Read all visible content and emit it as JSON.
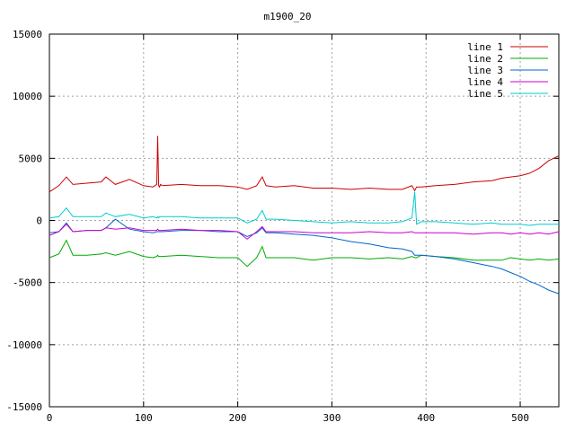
{
  "chart_data": {
    "type": "line",
    "title": "m1900_20",
    "xlim": [
      0,
      541
    ],
    "ylim": [
      -15000,
      15000
    ],
    "x_ticks": [
      0,
      100,
      200,
      300,
      400,
      500
    ],
    "y_ticks": [
      -15000,
      -10000,
      -5000,
      0,
      5000,
      10000,
      15000
    ],
    "grid": true,
    "legend": "top-right",
    "x_sample": [
      0,
      10,
      18,
      25,
      40,
      55,
      60,
      70,
      85,
      100,
      110,
      114,
      115,
      116,
      117,
      118,
      120,
      140,
      160,
      180,
      200,
      210,
      220,
      226,
      230,
      240,
      260,
      280,
      300,
      320,
      340,
      360,
      375,
      385,
      388,
      390,
      395,
      410,
      430,
      450,
      470,
      480,
      490,
      500,
      510,
      520,
      530,
      541
    ],
    "series": [
      {
        "name": "line 1",
        "color": "#cc0000",
        "values": [
          2300,
          2800,
          3500,
          2900,
          3000,
          3100,
          3500,
          2900,
          3300,
          2800,
          2700,
          2900,
          6800,
          2800,
          2700,
          2900,
          2800,
          2900,
          2800,
          2800,
          2700,
          2500,
          2800,
          3500,
          2800,
          2700,
          2800,
          2600,
          2600,
          2500,
          2600,
          2500,
          2500,
          2800,
          2400,
          2700,
          2700,
          2800,
          2900,
          3100,
          3200,
          3400,
          3500,
          3600,
          3800,
          4200,
          4800,
          5200
        ]
      },
      {
        "name": "line 2",
        "color": "#00aa00",
        "values": [
          -3000,
          -2700,
          -1600,
          -2800,
          -2800,
          -2700,
          -2600,
          -2800,
          -2500,
          -2900,
          -3000,
          -2900,
          -2800,
          -2900,
          -2900,
          -2900,
          -2900,
          -2800,
          -2900,
          -3000,
          -3000,
          -3700,
          -3000,
          -2100,
          -3000,
          -3000,
          -3000,
          -3200,
          -3000,
          -3000,
          -3100,
          -3000,
          -3100,
          -2900,
          -3000,
          -3000,
          -2800,
          -2900,
          -3000,
          -3200,
          -3200,
          -3200,
          -3000,
          -3100,
          -3200,
          -3100,
          -3200,
          -3100
        ]
      },
      {
        "name": "line 3",
        "color": "#0066cc",
        "values": [
          -1000,
          -900,
          -200,
          -900,
          -800,
          -800,
          -600,
          100,
          -700,
          -900,
          -1000,
          -900,
          -900,
          -900,
          -900,
          -900,
          -900,
          -800,
          -800,
          -900,
          -900,
          -1300,
          -1000,
          -600,
          -1000,
          -1000,
          -1100,
          -1200,
          -1400,
          -1700,
          -1900,
          -2200,
          -2300,
          -2500,
          -2800,
          -2800,
          -2800,
          -2900,
          -3100,
          -3400,
          -3700,
          -3900,
          -4200,
          -4500,
          -4900,
          -5200,
          -5600,
          -5900
        ]
      },
      {
        "name": "line 4",
        "color": "#cc00cc",
        "values": [
          -1200,
          -900,
          -300,
          -900,
          -800,
          -800,
          -600,
          -700,
          -600,
          -800,
          -800,
          -800,
          -700,
          -800,
          -800,
          -800,
          -800,
          -700,
          -800,
          -800,
          -900,
          -1500,
          -900,
          -500,
          -900,
          -900,
          -900,
          -1000,
          -1000,
          -1000,
          -900,
          -1000,
          -1000,
          -900,
          -1000,
          -1000,
          -1000,
          -1000,
          -1000,
          -1100,
          -1000,
          -1000,
          -1100,
          -1000,
          -1100,
          -1000,
          -1100,
          -900
        ]
      },
      {
        "name": "line 5",
        "color": "#00cccc",
        "values": [
          200,
          300,
          1000,
          300,
          300,
          300,
          600,
          300,
          500,
          200,
          300,
          200,
          300,
          200,
          300,
          300,
          300,
          300,
          200,
          200,
          200,
          -200,
          100,
          800,
          100,
          100,
          0,
          -100,
          -200,
          -100,
          -200,
          -200,
          -100,
          200,
          2300,
          -300,
          -100,
          -100,
          -200,
          -300,
          -200,
          -300,
          -300,
          -300,
          -400,
          -300,
          -300,
          -300
        ]
      }
    ]
  }
}
